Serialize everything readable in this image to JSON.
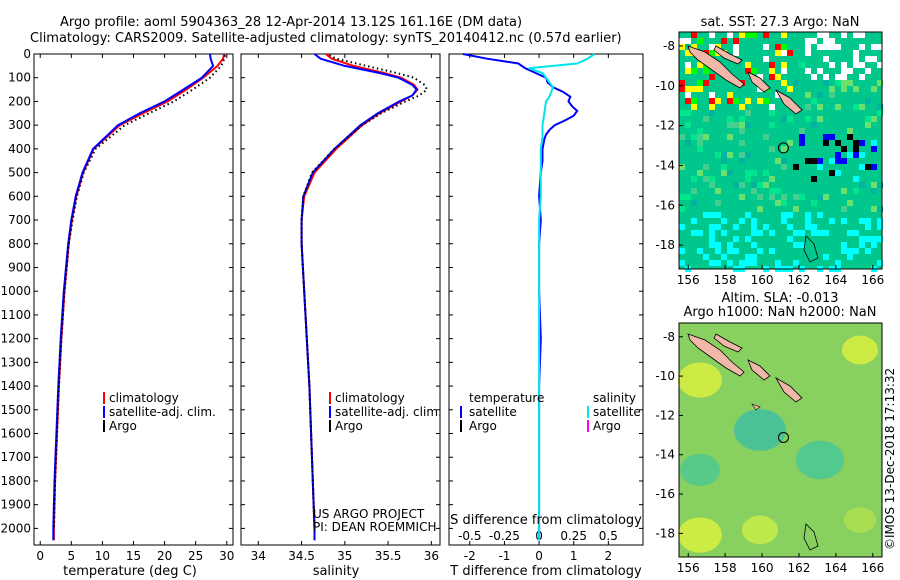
{
  "header": {
    "line1": "Argo profile: aoml 5904363_28 12-Apr-2014 13.12S 161.16E (DM data)",
    "line2": "Climatology: CARS2009. Satellite-adjusted climatology: synTS_20140412.nc (0.57d earlier)"
  },
  "credits": {
    "project": "US ARGO PROJECT",
    "pi": "PI: DEAN ROEMMICH",
    "imos": "©IMOS 13-Dec-2018 17:13:32"
  },
  "colors": {
    "climatology": "#ff0000",
    "satellite": "#0000ff",
    "argo": "#000000",
    "satellite_salinity": "#00e5ee",
    "argo_salinity": "#ff00ff"
  },
  "chart_data": [
    {
      "type": "line",
      "id": "temperature",
      "xlabel": "temperature (deg C)",
      "xlim": [
        -1,
        31
      ],
      "ylim": [
        2070,
        0
      ],
      "x_ticks": [
        0,
        5,
        10,
        15,
        20,
        25,
        30
      ],
      "y_ticks": [
        0,
        100,
        200,
        300,
        400,
        500,
        600,
        700,
        800,
        900,
        1000,
        1100,
        1200,
        1300,
        1400,
        1500,
        1600,
        1700,
        1800,
        1900,
        2000
      ],
      "legend": [
        "climatology",
        "satellite-adj. clim.",
        "Argo"
      ],
      "series": [
        {
          "name": "climatology",
          "color": "#ff0000",
          "style": "solid",
          "y": [
            0,
            20,
            50,
            100,
            150,
            200,
            250,
            300,
            400,
            500,
            600,
            700,
            800,
            1000,
            1200,
            1400,
            1600,
            1800,
            2000,
            2050
          ],
          "x": [
            29.6,
            29.4,
            28.5,
            26.2,
            23.5,
            20.5,
            16.5,
            12.8,
            8.6,
            6.9,
            5.8,
            5.1,
            4.6,
            3.9,
            3.4,
            3.0,
            2.7,
            2.4,
            2.2,
            2.2
          ]
        },
        {
          "name": "satellite-adj. clim.",
          "color": "#0000ff",
          "style": "solid",
          "y": [
            0,
            20,
            50,
            100,
            150,
            200,
            250,
            300,
            400,
            500,
            600,
            700,
            800,
            1000,
            1200,
            1400,
            1600,
            1800,
            2000,
            2050
          ],
          "x": [
            27.3,
            27.4,
            27.8,
            26.0,
            23.0,
            20.0,
            16.0,
            12.5,
            8.5,
            6.8,
            5.7,
            5.0,
            4.5,
            3.8,
            3.3,
            2.9,
            2.6,
            2.3,
            2.1,
            2.1
          ]
        },
        {
          "name": "Argo",
          "color": "#000000",
          "style": "dotted",
          "y": [
            5,
            20,
            50,
            100,
            150,
            200,
            250,
            300,
            400,
            500,
            600,
            700,
            800,
            1000,
            1200,
            1400,
            1600,
            1800,
            2000
          ],
          "x": [
            29.7,
            29.6,
            29.1,
            27.3,
            24.5,
            21.5,
            17.5,
            13.6,
            8.9,
            7.0,
            5.9,
            5.2,
            4.6,
            3.9,
            3.4,
            3.0,
            2.7,
            2.4,
            2.2
          ]
        }
      ]
    },
    {
      "type": "line",
      "id": "salinity",
      "xlabel": "salinity",
      "xlim": [
        33.8,
        36.1
      ],
      "ylim": [
        2070,
        0
      ],
      "x_ticks": [
        34,
        34.5,
        35,
        35.5,
        36
      ],
      "legend": [
        "climatology",
        "satellite-adj. clim.",
        "Argo"
      ],
      "series": [
        {
          "name": "climatology",
          "color": "#ff0000",
          "style": "solid",
          "y": [
            0,
            20,
            50,
            80,
            100,
            130,
            150,
            175,
            200,
            250,
            300,
            400,
            500,
            600,
            700,
            800,
            1000,
            1200,
            1400,
            1600,
            1800,
            2000,
            2050
          ],
          "x": [
            34.78,
            34.85,
            35.1,
            35.45,
            35.65,
            35.8,
            35.84,
            35.78,
            35.65,
            35.4,
            35.2,
            34.9,
            34.65,
            34.53,
            34.5,
            34.5,
            34.53,
            34.56,
            34.59,
            34.61,
            34.63,
            34.65,
            34.65
          ]
        },
        {
          "name": "satellite-adj. clim.",
          "color": "#0000ff",
          "style": "solid",
          "y": [
            0,
            20,
            50,
            80,
            100,
            130,
            150,
            175,
            200,
            250,
            300,
            400,
            500,
            600,
            700,
            800,
            1000,
            1200,
            1400,
            1600,
            1800,
            2000,
            2050
          ],
          "x": [
            34.65,
            34.72,
            35.0,
            35.4,
            35.62,
            35.78,
            35.83,
            35.78,
            35.63,
            35.38,
            35.18,
            34.88,
            34.63,
            34.52,
            34.5,
            34.5,
            34.53,
            34.56,
            34.59,
            34.61,
            34.63,
            34.65,
            34.65
          ]
        },
        {
          "name": "Argo",
          "color": "#000000",
          "style": "dotted",
          "y": [
            5,
            20,
            50,
            80,
            100,
            130,
            150,
            175,
            200,
            250,
            300,
            400,
            500,
            600,
            700,
            800,
            1000,
            1200,
            1400,
            1600,
            1800,
            2000
          ],
          "x": [
            34.82,
            34.9,
            35.25,
            35.6,
            35.8,
            35.92,
            35.95,
            35.86,
            35.7,
            35.42,
            35.2,
            34.88,
            34.62,
            34.52,
            34.5,
            34.5,
            34.53,
            34.56,
            34.59,
            34.61,
            34.63,
            34.65
          ]
        }
      ]
    },
    {
      "type": "line",
      "id": "difference",
      "xlabel": "T difference from climatology",
      "xlabel_top": "S difference from climatology",
      "xlim": [
        -2.6,
        3.0
      ],
      "ylim": [
        2070,
        0
      ],
      "x_ticks": [
        -2,
        -1,
        0,
        1,
        2
      ],
      "x_ticks_top": [
        "-0.5",
        "-0.25",
        "0",
        "0.25",
        "0.5"
      ],
      "x_ticks_top_pos": [
        -2,
        -1,
        0,
        1,
        2
      ],
      "legend_left_title": "temperature",
      "legend_right_title": "salinity",
      "legend_left": [
        "satellite",
        "Argo"
      ],
      "legend_right": [
        "satellite",
        "Argo"
      ],
      "series": [
        {
          "name": "temperature satellite",
          "color": "#0000ff",
          "style": "solid",
          "y": [
            0,
            20,
            40,
            60,
            80,
            100,
            120,
            140,
            160,
            180,
            200,
            220,
            240,
            260,
            280,
            300,
            320,
            340,
            360,
            400,
            450,
            500,
            600,
            700,
            800,
            1000,
            1200,
            1400,
            1600,
            1800,
            2000,
            2050
          ],
          "x": [
            -2.2,
            -1.5,
            -0.6,
            -0.4,
            -0.1,
            0.2,
            0.25,
            0.4,
            0.7,
            0.9,
            0.85,
            0.95,
            1.1,
            1.0,
            0.75,
            0.45,
            0.3,
            0.2,
            0.15,
            0.1,
            0.1,
            0.05,
            0.0,
            0.05,
            0.0,
            0.0,
            0.05,
            0.0,
            0.0,
            0.0,
            0.0,
            0.0
          ]
        },
        {
          "name": "salinity satellite",
          "color": "#00e5ee",
          "style": "solid",
          "y": [
            0,
            20,
            40,
            60,
            80,
            100,
            120,
            140,
            160,
            180,
            200,
            250,
            300,
            350,
            400,
            500,
            600,
            700,
            800,
            1000,
            1200,
            1400,
            1600,
            1800,
            2000,
            2050
          ],
          "x": [
            1.6,
            1.4,
            1.1,
            -0.3,
            0.1,
            0.2,
            0.3,
            0.4,
            0.35,
            0.3,
            0.2,
            0.15,
            0.1,
            0.1,
            0.05,
            0.05,
            0.05,
            0.0,
            0.0,
            0.0,
            0.0,
            0.0,
            0.0,
            0.0,
            0.0,
            0.0
          ]
        }
      ]
    }
  ],
  "maps": {
    "sst": {
      "title": "sat. SST: 27.3 Argo: NaN",
      "lon_ticks": [
        "156",
        "158",
        "160",
        "162",
        "164",
        "166"
      ],
      "lat_ticks": [
        "-8",
        "-10",
        "-12",
        "-14",
        "-16",
        "-18"
      ],
      "float_lon": 161.16,
      "float_lat": -13.12
    },
    "sla": {
      "title1": "Altim. SLA: -0.013",
      "title2": "Argo h1000: NaN h2000: NaN",
      "lon_ticks": [
        "156",
        "158",
        "160",
        "162",
        "164",
        "166"
      ],
      "lat_ticks": [
        "-8",
        "-10",
        "-12",
        "-14",
        "-16",
        "-18"
      ],
      "float_lon": 161.16,
      "float_lat": -13.12
    }
  }
}
